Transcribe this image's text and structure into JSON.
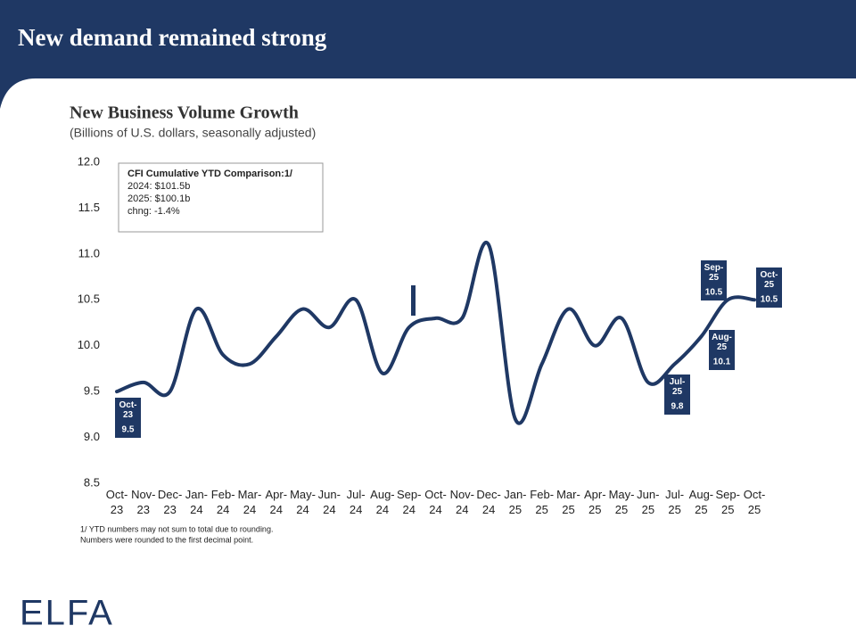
{
  "header": {
    "title": "New demand remained strong"
  },
  "chart_data": {
    "type": "line",
    "title": "New Business Volume Growth",
    "subtitle": "(Billions of U.S. dollars, seasonally adjusted)",
    "categories": [
      "Oct-23",
      "Nov-23",
      "Dec-23",
      "Jan-24",
      "Feb-24",
      "Mar-24",
      "Apr-24",
      "May-24",
      "Jun-24",
      "Jul-24",
      "Aug-24",
      "Sep-24",
      "Oct-24",
      "Nov-24",
      "Dec-24",
      "Jan-25",
      "Feb-25",
      "Mar-25",
      "Apr-25",
      "May-25",
      "Jun-25",
      "Jul-25",
      "Aug-25",
      "Sep-25",
      "Oct-25"
    ],
    "series": [
      {
        "name": "New Business Volume",
        "color": "#1f3864",
        "values": [
          9.5,
          9.6,
          9.5,
          10.4,
          9.9,
          9.8,
          10.1,
          10.4,
          10.2,
          10.5,
          9.7,
          10.2,
          10.3,
          10.3,
          11.1,
          9.2,
          9.8,
          10.4,
          10.0,
          10.3,
          9.6,
          9.8,
          10.1,
          10.5,
          10.5
        ]
      }
    ],
    "ylim": [
      8.5,
      12.0
    ],
    "yticks": [
      8.5,
      {
        "value": 9,
        "label": "9.0"
      },
      9.5,
      {
        "value": 10,
        "label": "10.0"
      },
      10.5,
      {
        "value": 11,
        "label": "11.0"
      },
      11.5,
      {
        "value": 12,
        "label": "12.0"
      }
    ],
    "annotation_box": [
      "CFI Cumulative YTD Comparison:1/",
      "2024: $101.5b",
      "2025: $100.1b",
      "chng: -1.4%"
    ],
    "footnotes": [
      "1/ YTD numbers may not sum to total due to rounding.",
      "Numbers were rounded to the first decimal point."
    ]
  },
  "logo": "ELFA"
}
